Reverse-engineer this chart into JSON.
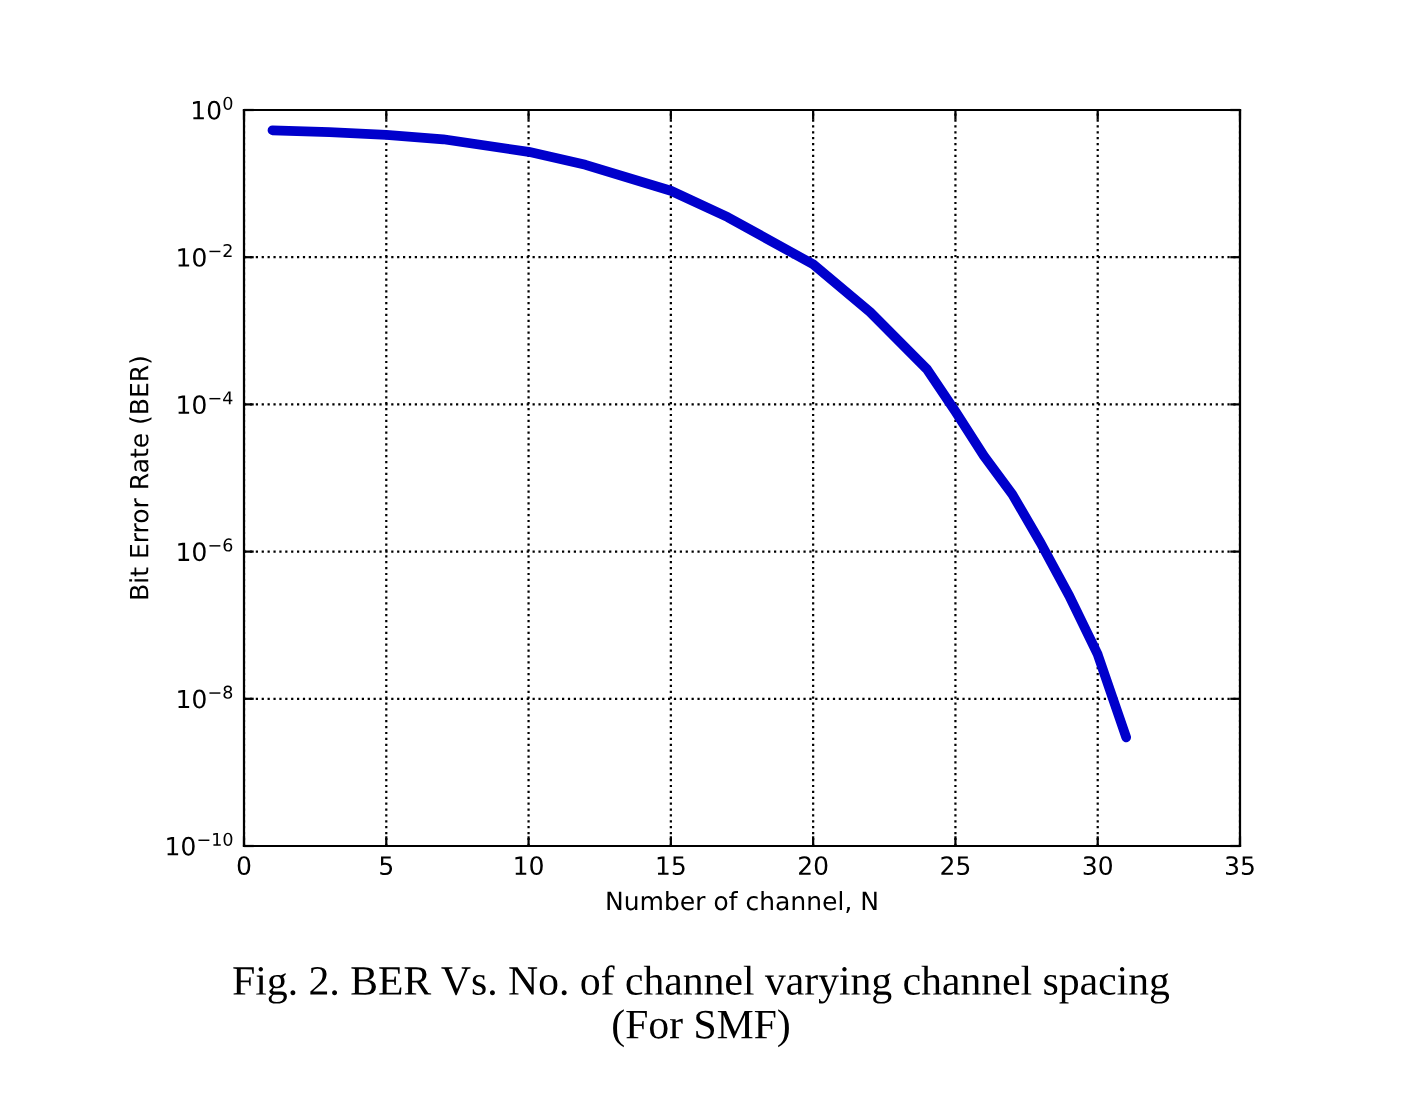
{
  "chart_data": {
    "type": "line",
    "xlabel": "Number of channel, N",
    "ylabel": "Bit Error Rate (BER)",
    "annotations": [
      "Fig. 2. BER Vs. No. of channel varying channel spacing\n(For SMF)"
    ],
    "series": [
      {
        "color": "#0000cc",
        "x": [
          1,
          3,
          5,
          7,
          10,
          12,
          15,
          17,
          20,
          22,
          24,
          25,
          26,
          27,
          28,
          29,
          30,
          31
        ],
        "values": [
          0.53,
          0.5,
          0.46,
          0.4,
          0.27,
          0.18,
          0.08,
          0.035,
          0.008,
          0.0018,
          0.0003,
          8e-05,
          2e-05,
          6e-06,
          1.3e-06,
          2.5e-07,
          4e-08,
          3e-09
        ]
      }
    ],
    "log": true,
    "xlim": [
      0,
      35
    ],
    "xticks": [
      0,
      5,
      10,
      15,
      20,
      25,
      30,
      35
    ],
    "ylim": [
      1e-10,
      1
    ],
    "yticks": [
      {
        "value": 1e-10,
        "label": "10$^{−10}$"
      },
      {
        "value": 1e-08,
        "label": "10$^{−8}$"
      },
      {
        "value": 1e-06,
        "label": "10$^{−6}$"
      },
      {
        "value": 0.0001,
        "label": "10$^{−4}$"
      },
      {
        "value": 0.01,
        "label": "10$^{−2}$"
      },
      {
        "value": 1,
        "label": "10$^{0}$"
      }
    ],
    "grid": true,
    "line_style": "solid",
    "marker": "none"
  }
}
